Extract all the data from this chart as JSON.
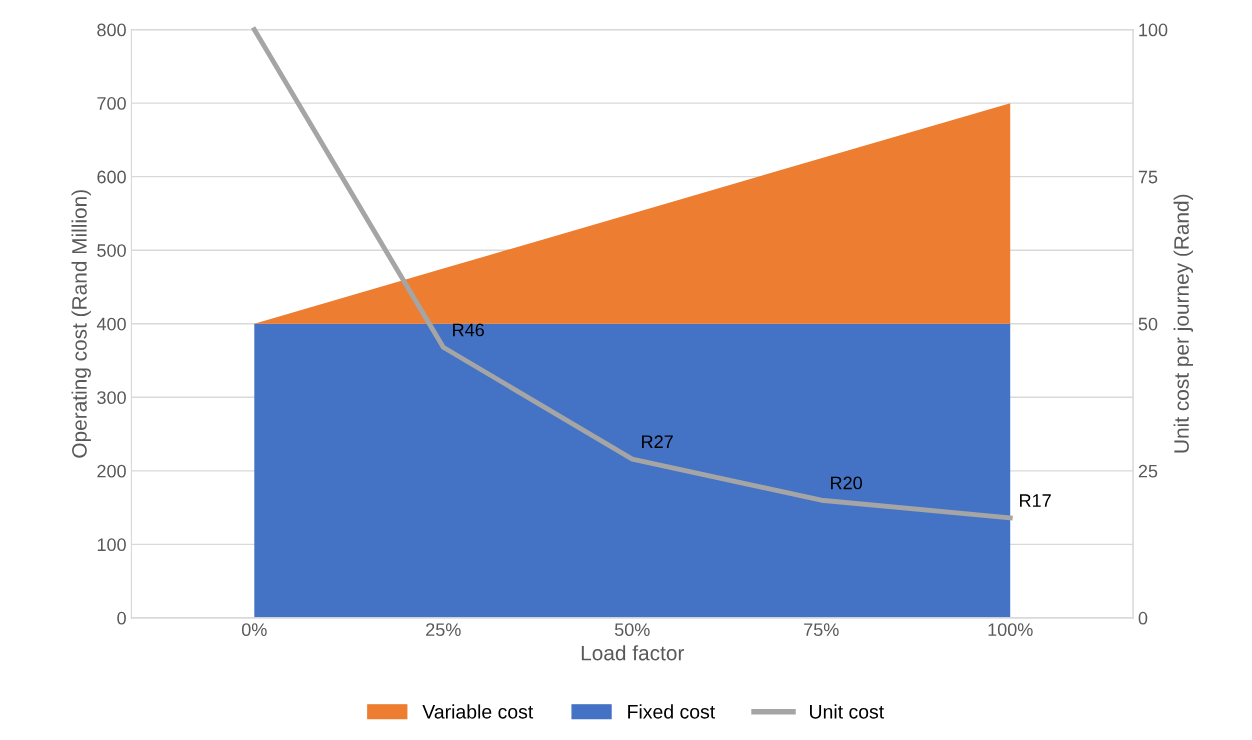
{
  "chart_data": {
    "type": "area",
    "xlabel": "Load factor",
    "ylabel": "Operating cost (Rand Million)",
    "y2label": "Unit cost per journey (Rand)",
    "categories": [
      "0%",
      "25%",
      "50%",
      "75%",
      "100%"
    ],
    "stacked": true,
    "series": [
      {
        "name": "Fixed cost",
        "color": "#4472c4",
        "values": [
          400,
          400,
          400,
          400,
          400
        ]
      },
      {
        "name": "Variable cost",
        "color": "#ed7d31",
        "values": [
          0,
          75,
          150,
          225,
          300
        ]
      },
      {
        "name": "Unit cost",
        "type": "line",
        "axis": "y2",
        "color": "#a5a5a5",
        "values": [
          100,
          46,
          27,
          20,
          17
        ],
        "value_labels": [
          null,
          "R46",
          "R27",
          "R20",
          "R17"
        ]
      }
    ],
    "ylim": [
      0,
      800
    ],
    "yticks": [
      0,
      100,
      200,
      300,
      400,
      500,
      600,
      700,
      800
    ],
    "y2lim": [
      0,
      100
    ],
    "y2ticks": [
      0,
      25,
      50,
      75,
      100
    ],
    "grid": "y",
    "legend": "bottom",
    "marker": "none",
    "line_style": "solid"
  }
}
